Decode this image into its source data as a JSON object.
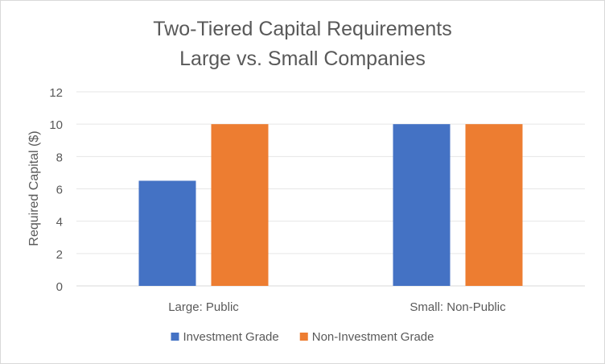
{
  "chart_data": {
    "type": "bar",
    "title_lines": [
      "Two-Tiered Capital Requirements",
      "Large vs. Small Companies"
    ],
    "xlabel": "",
    "ylabel": "Required Capital ($)",
    "categories": [
      "Large: Public",
      "Small: Non-Public"
    ],
    "series": [
      {
        "name": "Investment Grade",
        "color": "#4472c4",
        "values": [
          6.5,
          10
        ]
      },
      {
        "name": "Non-Investment Grade",
        "color": "#ed7d31",
        "values": [
          10,
          10
        ]
      }
    ],
    "ylim": [
      0,
      12
    ],
    "yticks": [
      "0",
      "2",
      "4",
      "6",
      "8",
      "10",
      "12"
    ],
    "grid": true,
    "legend_position": "bottom"
  }
}
